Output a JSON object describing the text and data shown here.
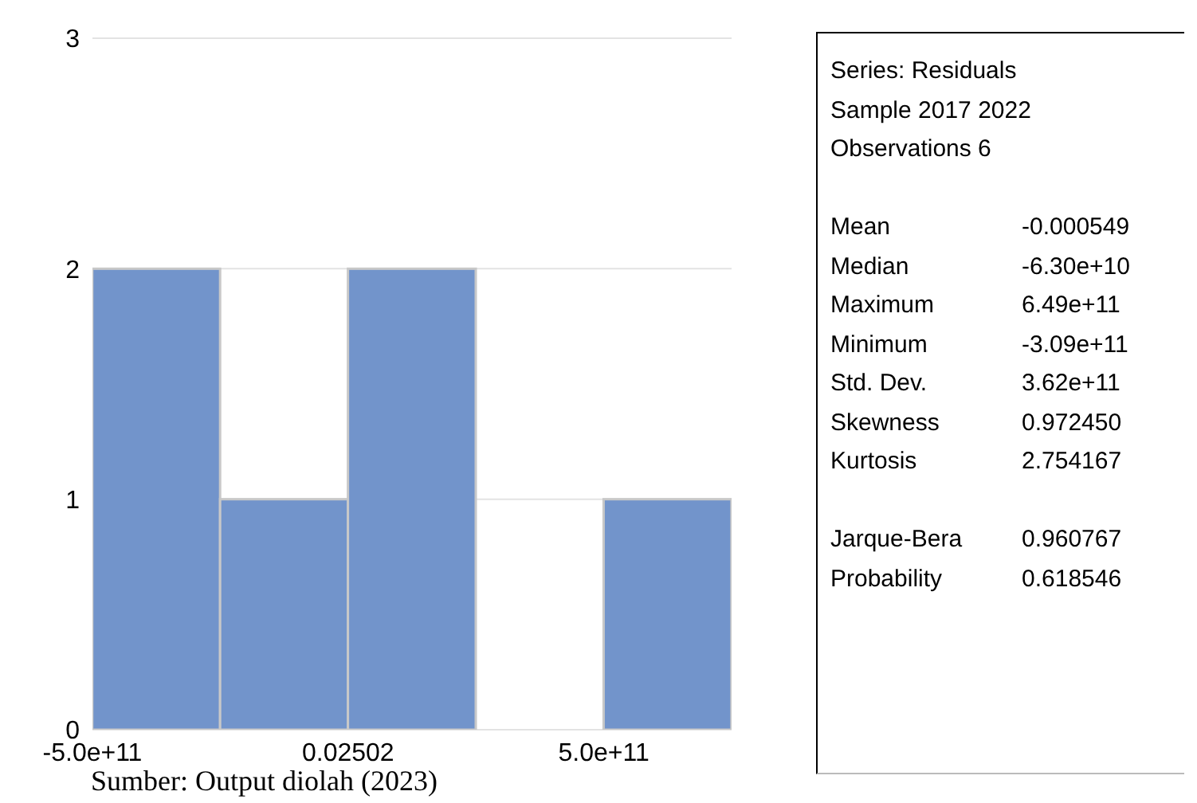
{
  "chart_data": {
    "type": "histogram",
    "bins": [
      -500000000000,
      -250000000000,
      0,
      250000000000,
      500000000000,
      750000000000
    ],
    "values": [
      2,
      1,
      2,
      0,
      1
    ],
    "color": "#7294cb",
    "xlim": [
      -500000000000,
      750000000000
    ],
    "xticks": [
      {
        "value": -500000000000,
        "label": "-5.0e+11"
      },
      0.02502,
      {
        "value": 500000000000,
        "label": "5.0e+11"
      }
    ],
    "ylim": [
      0,
      3
    ],
    "yticks": [
      0,
      1,
      2,
      3
    ],
    "grid": "y",
    "annotations": [
      "Series: Residuals",
      "Sample 2017 2022",
      "Observations 6",
      "Mean",
      "-0.000549",
      "Median",
      "-6.30e+10",
      "Maximum",
      "6.49e+11",
      "Minimum",
      "-3.09e+11",
      "Std. Dev.",
      "3.62e+11",
      "Skewness",
      "0.972450",
      "Kurtosis",
      "2.754167",
      "Jarque-Bera",
      "0.960767",
      "Probability",
      "0.618546",
      "Sumber: Output diolah (2023)"
    ]
  }
}
